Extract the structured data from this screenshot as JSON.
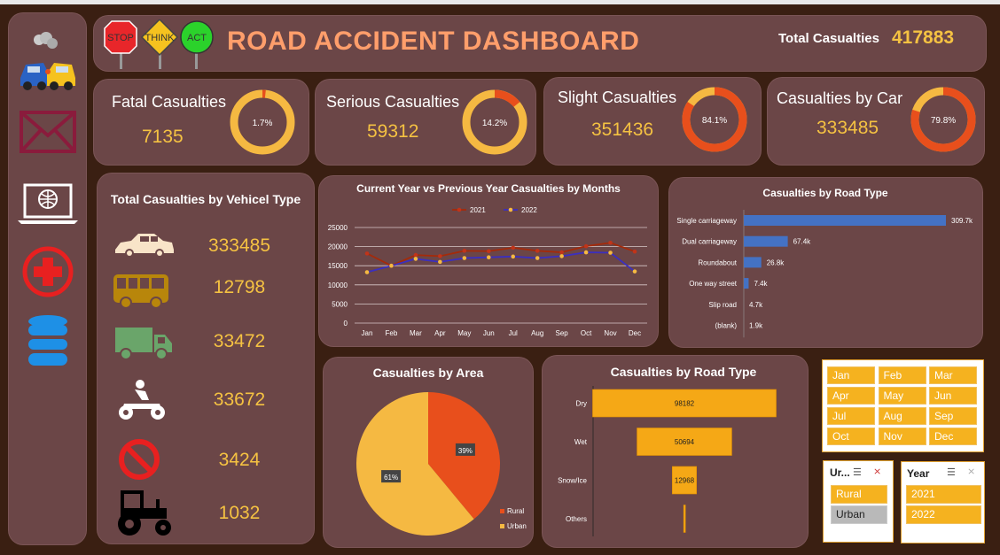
{
  "header": {
    "signs": [
      "STOP",
      "THINK",
      "ACT"
    ],
    "title": "ROAD ACCIDENT DASHBOARD",
    "total_label": "Total Casualties",
    "total_value": "417883"
  },
  "kpis": [
    {
      "label": "Fatal Casualties",
      "value": "7135",
      "pct_text": "1.7%",
      "pct": 1.7
    },
    {
      "label": "Serious Casualties",
      "value": "59312",
      "pct_text": "14.2%",
      "pct": 14.2
    },
    {
      "label": "Slight Casualties",
      "value": "351436",
      "pct_text": "84.1%",
      "pct": 84.1
    },
    {
      "label": "Casualties by Car",
      "value": "333485",
      "pct_text": "79.8%",
      "pct": 79.8
    }
  ],
  "vehicles": {
    "title": "Total Casualties by Vehicel Type",
    "items": [
      {
        "icon": "car-icon",
        "value": "333485"
      },
      {
        "icon": "bus-icon",
        "value": "12798"
      },
      {
        "icon": "truck-icon",
        "value": "33472"
      },
      {
        "icon": "bike-icon",
        "value": "33672"
      },
      {
        "icon": "no-entry-icon",
        "value": "3424"
      },
      {
        "icon": "tractor-icon",
        "value": "1032"
      }
    ]
  },
  "colors": {
    "orange": "#e84f1c",
    "yellow": "#f5b942",
    "blue": "#4472c4",
    "accent": "#f5c242"
  },
  "chart_data": [
    {
      "type": "line",
      "title": "Current Year vs Previous Year Casualties by Months",
      "categories": [
        "Jan",
        "Feb",
        "Mar",
        "Apr",
        "May",
        "Jun",
        "Jul",
        "Aug",
        "Sep",
        "Oct",
        "Nov",
        "Dec"
      ],
      "ylim": [
        0,
        25000
      ],
      "yticks": [
        "0",
        "5000",
        "10000",
        "15000",
        "20000",
        "25000"
      ],
      "legend_position": "top",
      "series": [
        {
          "name": "2021",
          "values": [
            18200,
            15000,
            17800,
            17500,
            18900,
            18800,
            19700,
            18900,
            18500,
            20100,
            21000,
            18700
          ]
        },
        {
          "name": "2022",
          "values": [
            13300,
            15000,
            16800,
            16000,
            17000,
            17200,
            17400,
            17000,
            17500,
            18500,
            18400,
            13500
          ]
        }
      ]
    },
    {
      "type": "bar",
      "title": "Casualties by Road Type",
      "categories": [
        "Single carriageway",
        "Dual carriageway",
        "Roundabout",
        "One way street",
        "Slip road",
        "(blank)"
      ],
      "values": [
        309.7,
        67.4,
        26.8,
        7.4,
        4.7,
        1.9
      ],
      "labels": [
        "309.7k",
        "67.4k",
        "26.8k",
        "7.4k",
        "4.7k",
        "1.9k"
      ]
    },
    {
      "type": "pie",
      "title": "Casualties by Area",
      "categories": [
        "Rural",
        "Urban"
      ],
      "values": [
        39,
        61
      ],
      "labels": [
        "39%",
        "61%"
      ]
    },
    {
      "type": "bar",
      "title": "Casualties by Road Type",
      "categories": [
        "Dry",
        "Wet",
        "Snow/Ice",
        "Others"
      ],
      "values": [
        98182,
        50694,
        12968,
        800
      ],
      "labels": [
        "98182",
        "50694",
        "12968",
        ""
      ]
    }
  ],
  "slicers": {
    "months": [
      "Jan",
      "Feb",
      "Mar",
      "Apr",
      "May",
      "Jun",
      "Jul",
      "Aug",
      "Sep",
      "Oct",
      "Nov",
      "Dec"
    ],
    "area": {
      "header": "Ur...",
      "items": [
        "Rural",
        "Urban"
      ]
    },
    "year": {
      "header": "Year",
      "items": [
        "2021",
        "2022"
      ]
    }
  }
}
